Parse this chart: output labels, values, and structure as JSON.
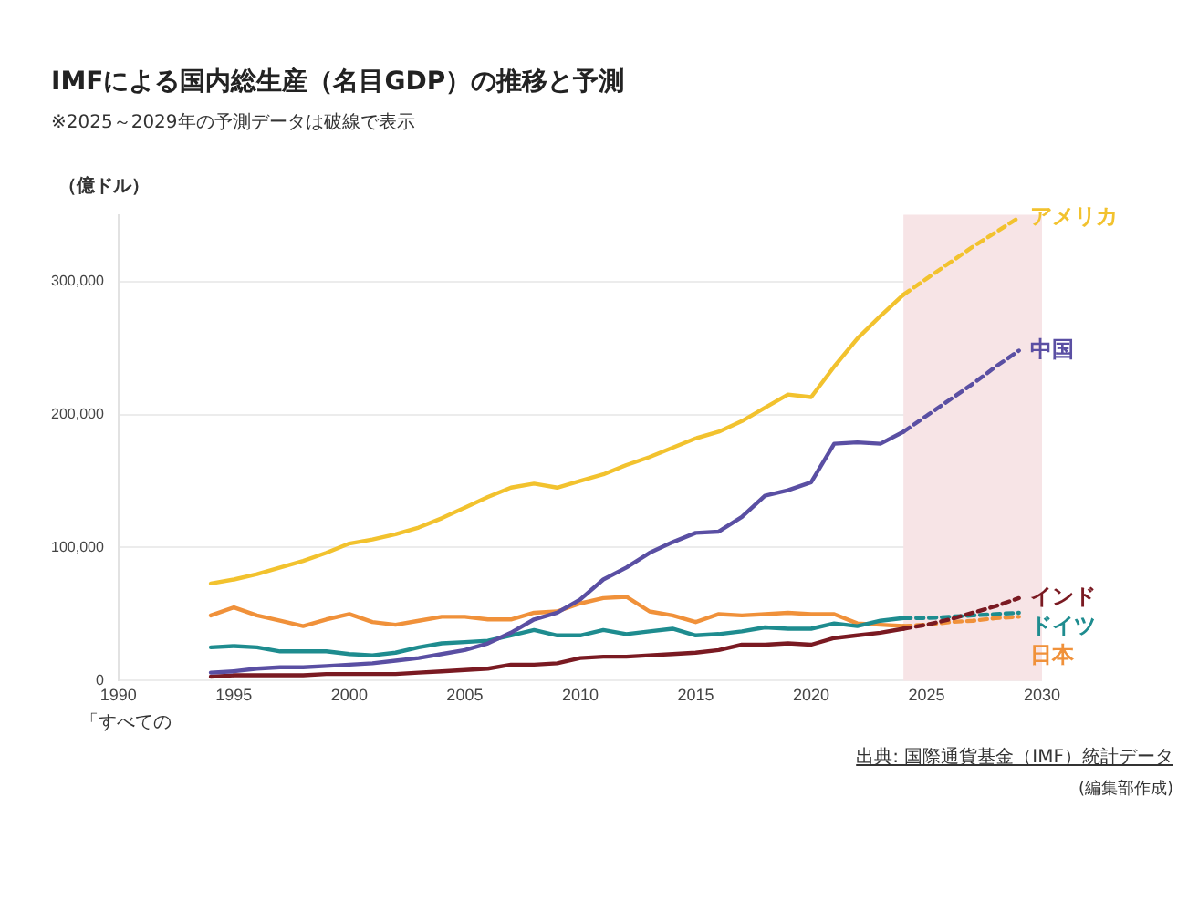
{
  "chart_data": {
    "type": "line",
    "title": "IMFによる国内総生産（名目GDP）の推移と予測",
    "subtitle": "※2025～2029年の予測データは破線で表示",
    "ylabel": "（億ドル）",
    "xlim": [
      1990,
      2030
    ],
    "xticks": [
      1990,
      1995,
      2000,
      2005,
      2010,
      2015,
      2020,
      2025,
      2030
    ],
    "ylim": [
      0,
      350000
    ],
    "yticks": [
      {
        "value": 0,
        "label": "0"
      },
      {
        "value": 100000,
        "label": "100,000"
      },
      {
        "value": 200000,
        "label": "200,000"
      },
      {
        "value": 300000,
        "label": "300,000"
      }
    ],
    "grid": "y",
    "marker": "none",
    "bands": [
      {
        "axis": "x",
        "from": 2024,
        "to": 2030,
        "color": "#f7e4e6"
      }
    ],
    "series": [
      {
        "color": "#f2c22e",
        "line_style": "solid",
        "x": [
          1994,
          1995,
          1996,
          1997,
          1998,
          1999,
          2000,
          2001,
          2002,
          2003,
          2004,
          2005,
          2006,
          2007,
          2008,
          2009,
          2010,
          2011,
          2012,
          2013,
          2014,
          2015,
          2016,
          2017,
          2018,
          2019,
          2020,
          2021,
          2022,
          2023,
          2024
        ],
        "values": [
          73000,
          76000,
          80000,
          85000,
          90000,
          96000,
          103000,
          106000,
          110000,
          115000,
          122000,
          130000,
          138000,
          145000,
          148000,
          145000,
          150000,
          155000,
          162000,
          168000,
          175000,
          182000,
          187000,
          195000,
          205000,
          215000,
          213000,
          236000,
          257000,
          274000,
          290000
        ]
      },
      {
        "name": "アメリカ",
        "color": "#f2c22e",
        "line_style": "dashed",
        "x": [
          2024,
          2025,
          2026,
          2027,
          2028,
          2029
        ],
        "values": [
          290000,
          302000,
          314000,
          326000,
          337000,
          348000
        ]
      },
      {
        "color": "#5a4fa3",
        "line_style": "solid",
        "x": [
          1994,
          1995,
          1996,
          1997,
          1998,
          1999,
          2000,
          2001,
          2002,
          2003,
          2004,
          2005,
          2006,
          2007,
          2008,
          2009,
          2010,
          2011,
          2012,
          2013,
          2014,
          2015,
          2016,
          2017,
          2018,
          2019,
          2020,
          2021,
          2022,
          2023,
          2024
        ],
        "values": [
          6000,
          7000,
          9000,
          10000,
          10000,
          11000,
          12000,
          13000,
          15000,
          17000,
          20000,
          23000,
          28000,
          36000,
          46000,
          51000,
          61000,
          76000,
          85000,
          96000,
          104000,
          111000,
          112000,
          123000,
          139000,
          143000,
          149000,
          178000,
          179000,
          178000,
          187000
        ]
      },
      {
        "name": "中国",
        "color": "#5a4fa3",
        "line_style": "dashed",
        "x": [
          2024,
          2025,
          2026,
          2027,
          2028,
          2029
        ],
        "values": [
          187000,
          199000,
          211000,
          223000,
          236000,
          248000
        ]
      },
      {
        "color": "#7a1a22",
        "line_style": "solid",
        "x": [
          1994,
          1995,
          1996,
          1997,
          1998,
          1999,
          2000,
          2001,
          2002,
          2003,
          2004,
          2005,
          2006,
          2007,
          2008,
          2009,
          2010,
          2011,
          2012,
          2013,
          2014,
          2015,
          2016,
          2017,
          2018,
          2019,
          2020,
          2021,
          2022,
          2023,
          2024
        ],
        "values": [
          3000,
          4000,
          4000,
          4000,
          4000,
          5000,
          5000,
          5000,
          5000,
          6000,
          7000,
          8000,
          9000,
          12000,
          12000,
          13000,
          17000,
          18000,
          18000,
          19000,
          20000,
          21000,
          23000,
          27000,
          27000,
          28000,
          27000,
          32000,
          34000,
          36000,
          39000
        ]
      },
      {
        "name": "インド",
        "color": "#7a1a22",
        "line_style": "dashed",
        "x": [
          2024,
          2025,
          2026,
          2027,
          2028,
          2029
        ],
        "values": [
          39000,
          42000,
          46000,
          51000,
          56000,
          62000
        ]
      },
      {
        "color": "#1e8c8f",
        "line_style": "solid",
        "x": [
          1994,
          1995,
          1996,
          1997,
          1998,
          1999,
          2000,
          2001,
          2002,
          2003,
          2004,
          2005,
          2006,
          2007,
          2008,
          2009,
          2010,
          2011,
          2012,
          2013,
          2014,
          2015,
          2016,
          2017,
          2018,
          2019,
          2020,
          2021,
          2022,
          2023,
          2024
        ],
        "values": [
          25000,
          26000,
          25000,
          22000,
          22000,
          22000,
          20000,
          19000,
          21000,
          25000,
          28000,
          29000,
          30000,
          34000,
          38000,
          34000,
          34000,
          38000,
          35000,
          37000,
          39000,
          34000,
          35000,
          37000,
          40000,
          39000,
          39000,
          43000,
          41000,
          45000,
          47000
        ]
      },
      {
        "name": "ドイツ",
        "color": "#1e8c8f",
        "line_style": "dashed",
        "x": [
          2024,
          2025,
          2026,
          2027,
          2028,
          2029
        ],
        "values": [
          47000,
          47000,
          48000,
          49000,
          50000,
          51000
        ]
      },
      {
        "color": "#f0913a",
        "line_style": "solid",
        "x": [
          1994,
          1995,
          1996,
          1997,
          1998,
          1999,
          2000,
          2001,
          2002,
          2003,
          2004,
          2005,
          2006,
          2007,
          2008,
          2009,
          2010,
          2011,
          2012,
          2013,
          2014,
          2015,
          2016,
          2017,
          2018,
          2019,
          2020,
          2021,
          2022,
          2023,
          2024
        ],
        "values": [
          49000,
          55000,
          49000,
          45000,
          41000,
          46000,
          50000,
          44000,
          42000,
          45000,
          48000,
          48000,
          46000,
          46000,
          51000,
          52000,
          58000,
          62000,
          63000,
          52000,
          49000,
          44000,
          50000,
          49000,
          50000,
          51000,
          50000,
          50000,
          43000,
          42000,
          41000
        ]
      },
      {
        "name": "日本",
        "color": "#f0913a",
        "line_style": "dashed",
        "x": [
          2024,
          2025,
          2026,
          2027,
          2028,
          2029
        ],
        "values": [
          41000,
          42000,
          44000,
          45000,
          47000,
          48000
        ]
      }
    ],
    "annotations": [
      "「すべての",
      "出典: 国際通貨基金（IMF）統計データ",
      "(編集部作成)"
    ]
  }
}
